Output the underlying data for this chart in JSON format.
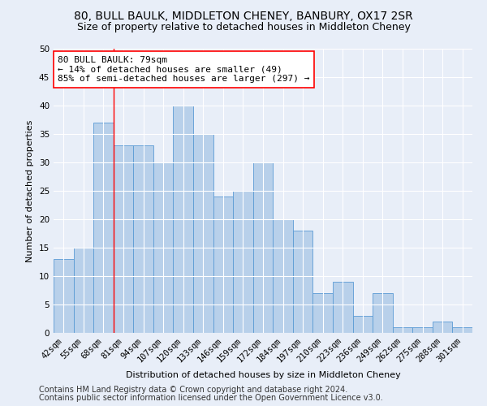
{
  "title_line1": "80, BULL BAULK, MIDDLETON CHENEY, BANBURY, OX17 2SR",
  "title_line2": "Size of property relative to detached houses in Middleton Cheney",
  "xlabel": "Distribution of detached houses by size in Middleton Cheney",
  "ylabel": "Number of detached properties",
  "categories": [
    "42sqm",
    "55sqm",
    "68sqm",
    "81sqm",
    "94sqm",
    "107sqm",
    "120sqm",
    "133sqm",
    "146sqm",
    "159sqm",
    "172sqm",
    "184sqm",
    "197sqm",
    "210sqm",
    "223sqm",
    "236sqm",
    "249sqm",
    "262sqm",
    "275sqm",
    "288sqm",
    "301sqm"
  ],
  "values": [
    13,
    15,
    37,
    33,
    33,
    30,
    40,
    35,
    24,
    25,
    30,
    20,
    18,
    7,
    9,
    3,
    7,
    1,
    1,
    2,
    1
  ],
  "bar_color": "#b8d0ea",
  "bar_edge_color": "#5b9bd5",
  "vline_x": 2.5,
  "vline_color": "red",
  "annotation_text": "80 BULL BAULK: 79sqm\n← 14% of detached houses are smaller (49)\n85% of semi-detached houses are larger (297) →",
  "annotation_box_color": "white",
  "annotation_box_edge_color": "red",
  "ylim": [
    0,
    50
  ],
  "yticks": [
    0,
    5,
    10,
    15,
    20,
    25,
    30,
    35,
    40,
    45,
    50
  ],
  "footer_line1": "Contains HM Land Registry data © Crown copyright and database right 2024.",
  "footer_line2": "Contains public sector information licensed under the Open Government Licence v3.0.",
  "bg_color": "#e8eef8",
  "plot_bg_color": "#e8eef8",
  "grid_color": "#ffffff",
  "title_fontsize": 10,
  "subtitle_fontsize": 9,
  "footer_fontsize": 7,
  "annotation_fontsize": 8,
  "axis_label_fontsize": 8,
  "tick_fontsize": 7.5,
  "ylabel_fontsize": 8
}
